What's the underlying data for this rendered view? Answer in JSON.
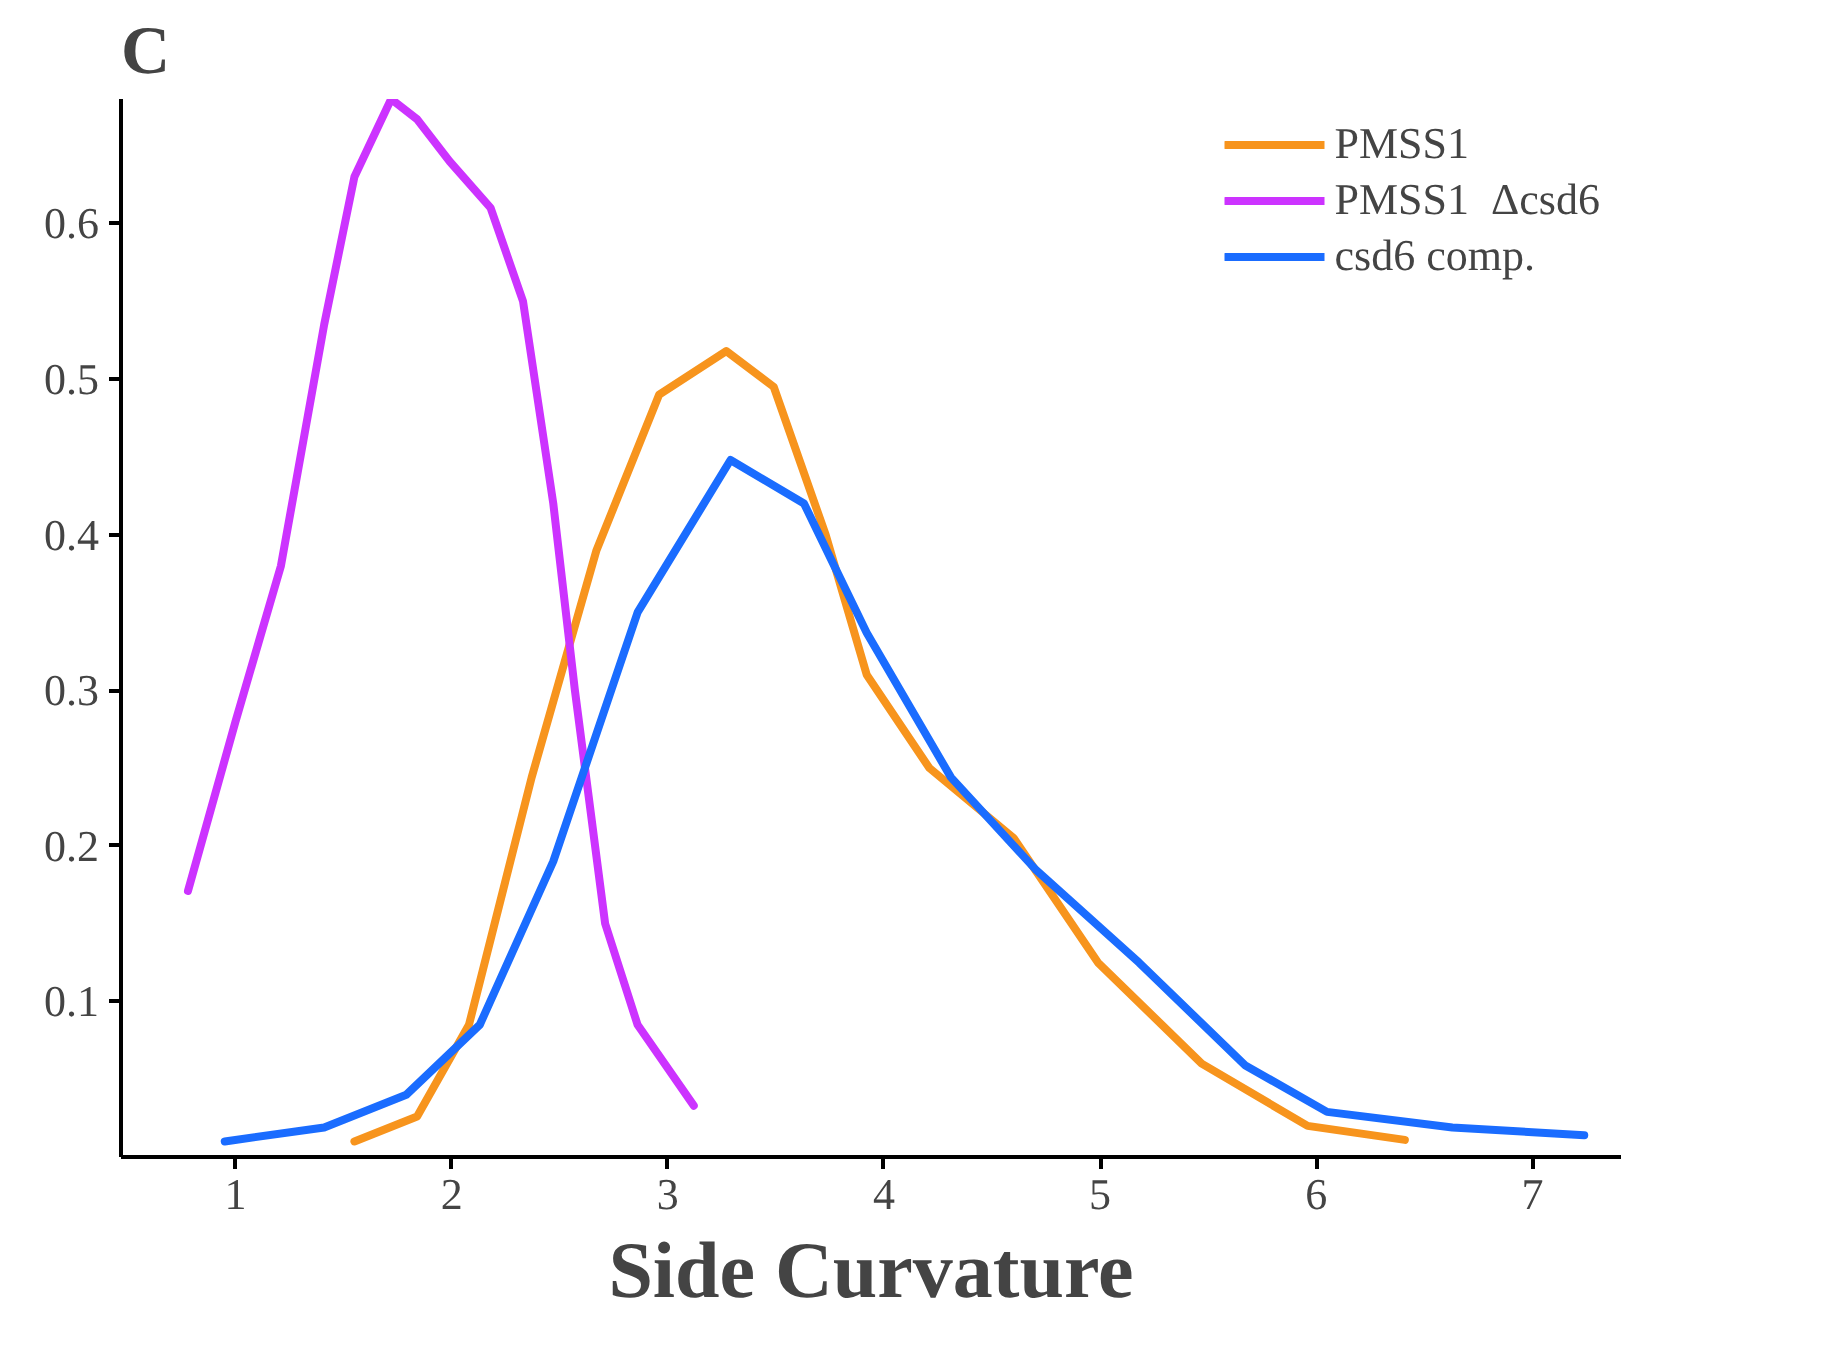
{
  "chart_data": {
    "type": "line",
    "title": "C",
    "xlabel": "Side Curvature",
    "xlim": [
      0.47,
      7.41
    ],
    "ylim": [
      0,
      0.68
    ],
    "xticks": [
      1,
      2,
      3,
      4,
      5,
      6,
      7
    ],
    "yticks": [
      0.1,
      0.2,
      0.3,
      0.4,
      0.5,
      0.6
    ],
    "grid": false,
    "legend": "top right",
    "marker": "none",
    "line_style": "solid",
    "series": [
      {
        "name": "PMSS1",
        "color": "#f7941d",
        "x": [
          1.55,
          1.84,
          2.08,
          2.37,
          2.67,
          2.96,
          3.27,
          3.49,
          3.73,
          3.92,
          4.21,
          4.6,
          4.99,
          5.47,
          5.96,
          6.41
        ],
        "values": [
          0.01,
          0.026,
          0.085,
          0.244,
          0.39,
          0.49,
          0.518,
          0.495,
          0.4,
          0.31,
          0.25,
          0.205,
          0.125,
          0.06,
          0.02,
          0.011
        ]
      },
      {
        "name": "PMSS1  Δcsd6",
        "color": "#cc33ff",
        "x": [
          0.78,
          1.0,
          1.21,
          1.41,
          1.55,
          1.72,
          1.84,
          1.99,
          2.18,
          2.33,
          2.47,
          2.57,
          2.71,
          2.86,
          3.12
        ],
        "values": [
          0.171,
          0.28,
          0.38,
          0.535,
          0.63,
          0.68,
          0.667,
          0.64,
          0.61,
          0.55,
          0.42,
          0.3,
          0.15,
          0.085,
          0.033
        ]
      },
      {
        "name": "csd6 comp.",
        "color": "#1a6cff",
        "x": [
          0.95,
          1.41,
          1.79,
          2.13,
          2.47,
          2.86,
          3.29,
          3.63,
          3.92,
          4.31,
          4.7,
          5.18,
          5.67,
          6.05,
          6.63,
          7.24
        ],
        "values": [
          0.01,
          0.019,
          0.04,
          0.085,
          0.19,
          0.35,
          0.448,
          0.42,
          0.337,
          0.244,
          0.185,
          0.125,
          0.059,
          0.029,
          0.019,
          0.014
        ]
      }
    ]
  }
}
